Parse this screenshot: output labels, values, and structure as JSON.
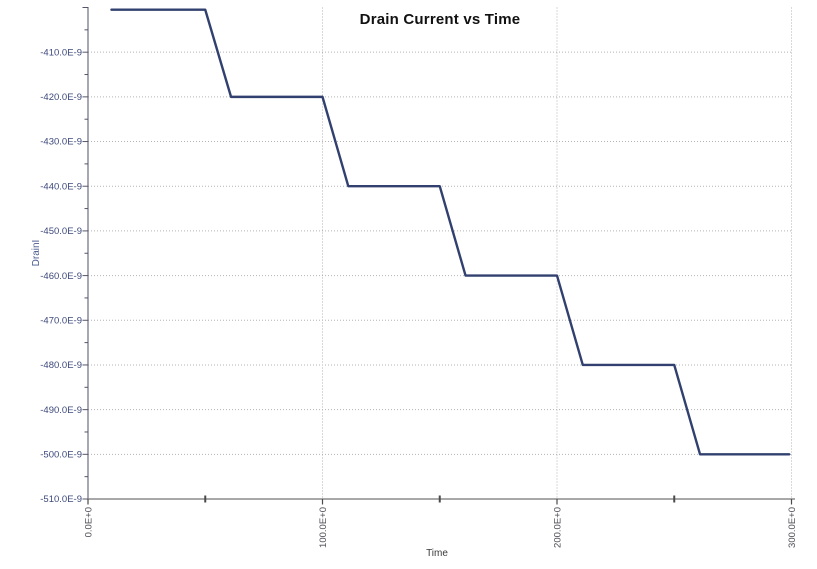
{
  "title": "Drain Current vs Time",
  "chart_data": {
    "type": "line",
    "title": "Drain Current vs Time",
    "xlabel": "Time",
    "ylabel": "DrainI",
    "xlim": [
      0,
      300
    ],
    "ylim": [
      -510,
      -400
    ],
    "y_scale_note": "y values are in units of 1E-9 (nanoamps), as labeled on axis",
    "grid": "dotted major gridlines",
    "legend": "none",
    "series": [
      {
        "name": "DrainI",
        "points": [
          [
            10,
            -400.5
          ],
          [
            50,
            -400.5
          ],
          [
            61,
            -420
          ],
          [
            100,
            -420
          ],
          [
            111,
            -440
          ],
          [
            150,
            -440
          ],
          [
            161,
            -460
          ],
          [
            200,
            -460
          ],
          [
            211,
            -480
          ],
          [
            250,
            -480
          ],
          [
            261,
            -500
          ],
          [
            299,
            -500
          ]
        ],
        "shape": "staircase stepping down 20E-9 every 50 time units with short ramps"
      }
    ]
  },
  "axes": {
    "x": {
      "label": "Time",
      "min": 0,
      "max": 300,
      "major_ticks": [
        {
          "value": 0,
          "label": "0.0E+0"
        },
        {
          "value": 100,
          "label": "100.0E+0"
        },
        {
          "value": 200,
          "label": "200.0E+0"
        },
        {
          "value": 300,
          "label": "300.0E+0"
        }
      ],
      "minor_ticks": [
        50,
        150,
        250
      ],
      "gridlines": [
        100,
        200,
        300
      ],
      "tick_label_rotation_deg": -90
    },
    "y": {
      "label": "DrainI",
      "min": -510,
      "max": -400,
      "scale": "E-9",
      "major_ticks": [
        {
          "value": -400,
          "label": ""
        },
        {
          "value": -410,
          "label": "-410.0E-9"
        },
        {
          "value": -420,
          "label": "-420.0E-9"
        },
        {
          "value": -430,
          "label": "-430.0E-9"
        },
        {
          "value": -440,
          "label": "-440.0E-9"
        },
        {
          "value": -450,
          "label": "-450.0E-9"
        },
        {
          "value": -460,
          "label": "-460.0E-9"
        },
        {
          "value": -470,
          "label": "-470.0E-9"
        },
        {
          "value": -480,
          "label": "-480.0E-9"
        },
        {
          "value": -490,
          "label": "-490.0E-9"
        },
        {
          "value": -500,
          "label": "-500.0E-9"
        },
        {
          "value": -510,
          "label": "-510.0E-9"
        }
      ],
      "minor_ticks": [
        -405,
        -415,
        -425,
        -435,
        -445,
        -455,
        -465,
        -475,
        -485,
        -495,
        -505
      ],
      "gridlines": [
        -410,
        -420,
        -430,
        -440,
        -450,
        -460,
        -470,
        -480,
        -490,
        -500
      ]
    }
  },
  "colors": {
    "line": "#31406f",
    "grid": "#b3b3b3",
    "axis_y": "#6d6d82",
    "axis_x": "#8b8b8b",
    "tick_y": "#55556a",
    "tick_x": "#4a4a4a",
    "tick_text_y": "#3e4a7c",
    "tick_text_x": "#4f4f57",
    "title": "#111111",
    "x_axis_title": "#3a3a3a",
    "y_axis_title": "#4a5a8f",
    "background": "#ffffff"
  }
}
